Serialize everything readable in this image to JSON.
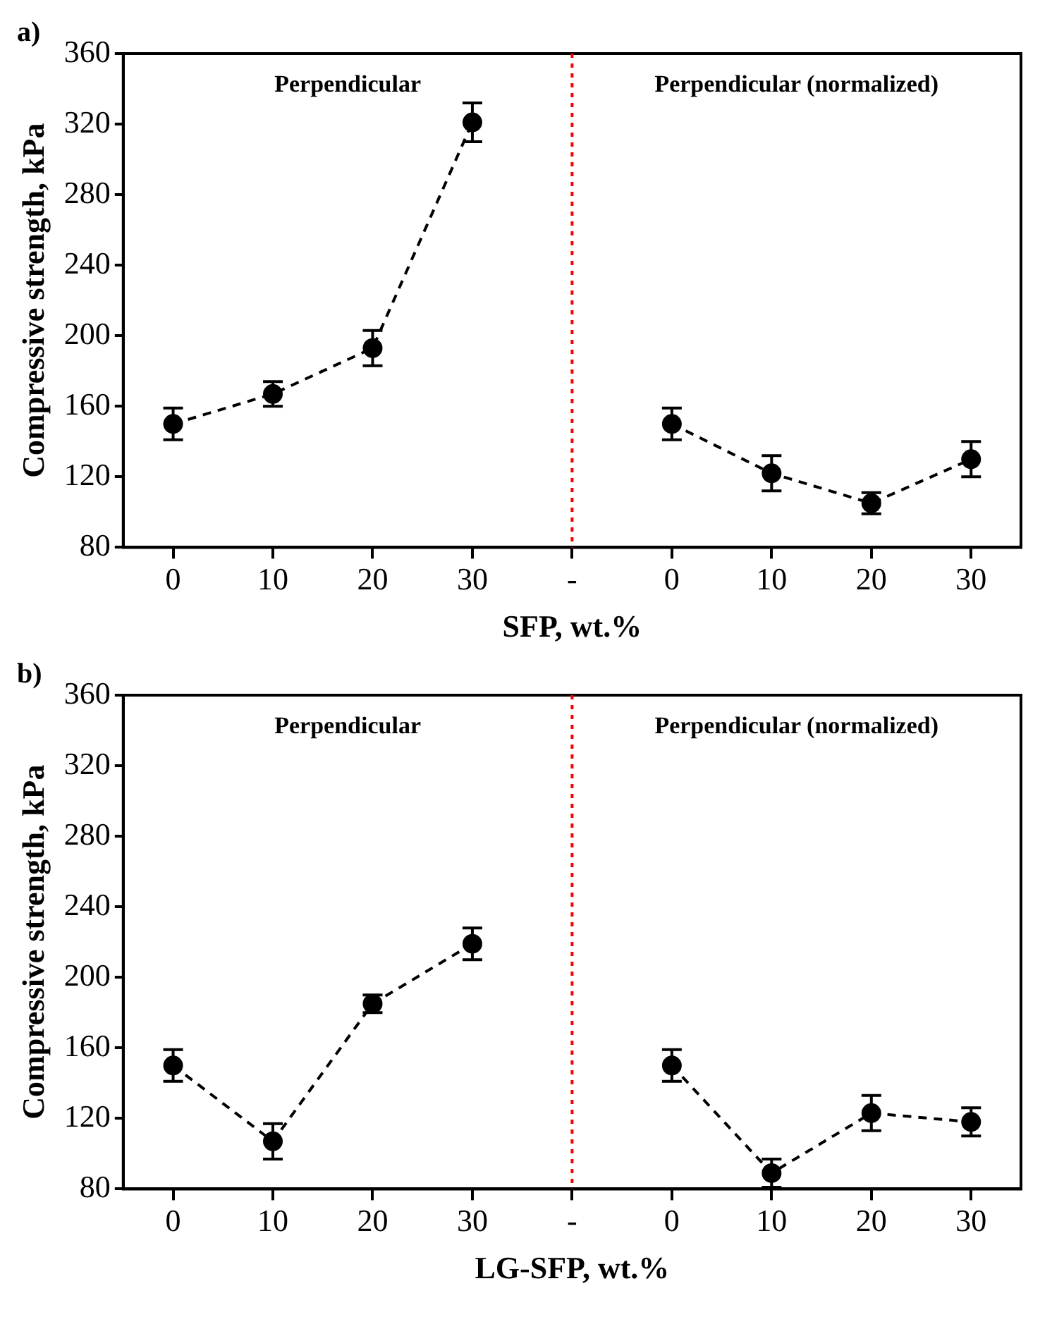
{
  "chart_data": [
    {
      "type": "line",
      "xlabel": "SFP, wt.%",
      "ylabel": "Compressive strength, kPa",
      "categories": [
        "0",
        "10",
        "20",
        "30",
        "-",
        "0",
        "10",
        "20",
        "30"
      ],
      "ylim": [
        80,
        360
      ],
      "yticks": [
        80,
        120,
        160,
        200,
        240,
        280,
        320,
        360
      ],
      "grid": false,
      "legend": false,
      "marker": "circle",
      "line_style": "dashed",
      "series": [
        {
          "color": "#000000",
          "values": [
            150,
            167,
            193,
            321,
            null,
            null,
            null,
            null,
            null
          ],
          "errors": [
            9,
            7,
            10,
            11,
            null,
            null,
            null,
            null,
            null
          ]
        },
        {
          "color": "#000000",
          "values": [
            null,
            null,
            null,
            null,
            null,
            150,
            122,
            105,
            130
          ],
          "errors": [
            null,
            null,
            null,
            null,
            null,
            9,
            10,
            6,
            10
          ]
        }
      ],
      "ref_lines": [
        {
          "axis": "x",
          "value": "-",
          "color": "#ff0000",
          "line_style": "dotted"
        }
      ],
      "annotations": [
        "a)",
        "Perpendicular",
        "Perpendicular (normalized)"
      ]
    },
    {
      "type": "line",
      "xlabel": "LG-SFP, wt.%",
      "ylabel": "Compressive strength, kPa",
      "categories": [
        "0",
        "10",
        "20",
        "30",
        "-",
        "0",
        "10",
        "20",
        "30"
      ],
      "ylim": [
        80,
        360
      ],
      "yticks": [
        80,
        120,
        160,
        200,
        240,
        280,
        320,
        360
      ],
      "grid": false,
      "legend": false,
      "marker": "circle",
      "line_style": "dashed",
      "series": [
        {
          "color": "#000000",
          "values": [
            150,
            107,
            185,
            219,
            null,
            null,
            null,
            null,
            null
          ],
          "errors": [
            9,
            10,
            5,
            9,
            null,
            null,
            null,
            null,
            null
          ]
        },
        {
          "color": "#000000",
          "values": [
            null,
            null,
            null,
            null,
            null,
            150,
            89,
            123,
            118
          ],
          "errors": [
            null,
            null,
            null,
            null,
            null,
            9,
            8,
            10,
            8
          ]
        }
      ],
      "ref_lines": [
        {
          "axis": "x",
          "value": "-",
          "color": "#ff0000",
          "line_style": "dotted"
        }
      ],
      "annotations": [
        "b)",
        "Perpendicular",
        "Perpendicular (normalized)"
      ]
    }
  ]
}
